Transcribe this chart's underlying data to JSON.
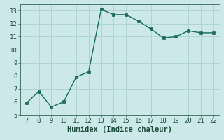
{
  "x": [
    7,
    8,
    9,
    10,
    11,
    12,
    13,
    14,
    15,
    16,
    17,
    18,
    19,
    20,
    21,
    22
  ],
  "y": [
    5.9,
    6.8,
    5.6,
    6.0,
    7.9,
    8.3,
    13.1,
    12.7,
    12.7,
    12.2,
    11.6,
    10.9,
    11.0,
    11.45,
    11.3,
    11.3
  ],
  "xlabel": "Humidex (Indice chaleur)",
  "xlim": [
    6.5,
    22.5
  ],
  "ylim": [
    5,
    13.5
  ],
  "xticks": [
    7,
    8,
    9,
    10,
    11,
    12,
    13,
    14,
    15,
    16,
    17,
    18,
    19,
    20,
    21,
    22
  ],
  "yticks": [
    5,
    6,
    7,
    8,
    9,
    10,
    11,
    12,
    13
  ],
  "line_color": "#1a6b5a",
  "marker_color": "#1a6b5a",
  "bg_color": "#cce8e8",
  "grid_color": "#aed4d4",
  "tick_fontsize": 6.5,
  "xlabel_fontsize": 7.5,
  "line_width": 1.0,
  "marker_size": 2.5
}
